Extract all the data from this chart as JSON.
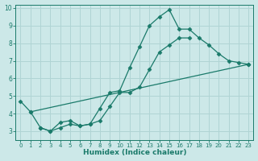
{
  "line1": {
    "x": [
      0,
      1,
      23
    ],
    "y": [
      4.7,
      4.1,
      6.8
    ]
  },
  "line2": {
    "x": [
      2,
      3,
      4,
      5,
      6,
      7,
      8,
      9,
      10,
      11,
      12,
      13,
      14,
      15,
      16,
      17,
      18,
      19,
      20,
      21,
      22,
      23
    ],
    "y": [
      3.2,
      3.0,
      3.2,
      3.4,
      3.3,
      3.4,
      4.3,
      5.2,
      5.3,
      6.6,
      7.8,
      9.0,
      9.5,
      9.9,
      8.8,
      8.8,
      8.3,
      7.9,
      7.4,
      7.0,
      6.9,
      6.8
    ]
  },
  "line3": {
    "x": [
      1,
      2,
      3,
      4,
      5,
      6,
      7,
      8,
      9,
      10,
      11,
      12,
      13,
      14,
      15,
      16,
      17,
      18,
      19,
      20,
      21
    ],
    "y": [
      4.1,
      3.2,
      3.0,
      3.5,
      3.6,
      3.3,
      3.4,
      3.6,
      4.4,
      5.2,
      5.2,
      5.5,
      6.5,
      7.5,
      7.9,
      8.3,
      8.3,
      null,
      null,
      null,
      null
    ]
  },
  "line_color": "#1a7a6a",
  "bg_color": "#cce8e8",
  "grid_color": "#b0d4d4",
  "xlabel": "Humidex (Indice chaleur)",
  "xlim": [
    -0.5,
    23.5
  ],
  "ylim": [
    2.5,
    10.2
  ],
  "yticks": [
    3,
    4,
    5,
    6,
    7,
    8,
    9,
    10
  ],
  "xticks": [
    0,
    1,
    2,
    3,
    4,
    5,
    6,
    7,
    8,
    9,
    10,
    11,
    12,
    13,
    14,
    15,
    16,
    17,
    18,
    19,
    20,
    21,
    22,
    23
  ]
}
